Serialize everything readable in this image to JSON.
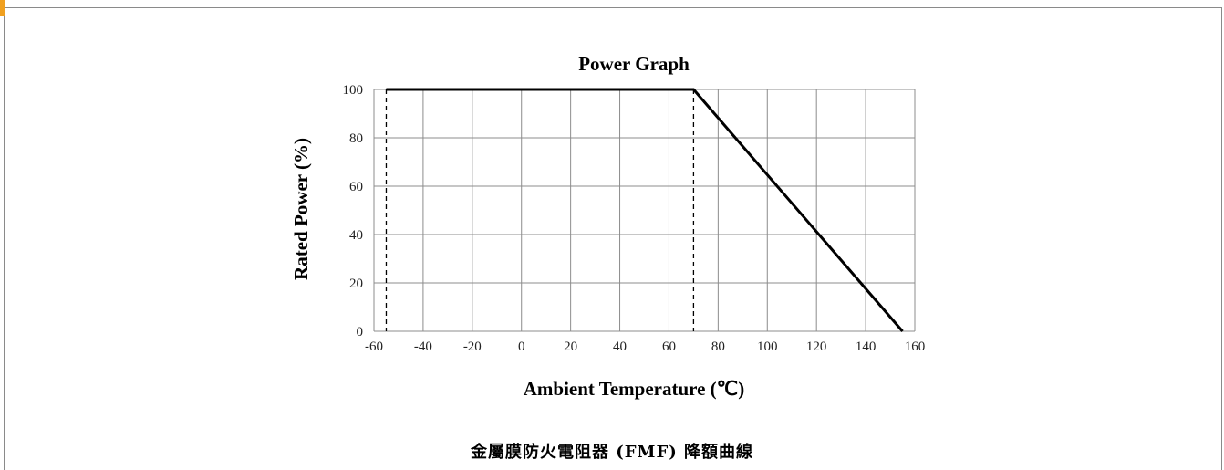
{
  "caption": "金屬膜防火電阻器 (FMF) 降額曲線",
  "chart_data": {
    "type": "line",
    "title": "Power Graph",
    "xlabel": "Ambient Temperature (℃)",
    "ylabel": "Rated Power (%)",
    "xlim": [
      -60,
      160
    ],
    "ylim": [
      0,
      100
    ],
    "x_ticks": [
      -60,
      -40,
      -20,
      0,
      20,
      40,
      60,
      80,
      100,
      120,
      140,
      160
    ],
    "y_ticks": [
      0,
      20,
      40,
      60,
      80,
      100
    ],
    "grid": true,
    "series": [
      {
        "x": [
          -55,
          70,
          155
        ],
        "y": [
          100,
          100,
          0
        ]
      }
    ],
    "reference_lines_x": [
      -55,
      70
    ],
    "line_color": "#000000",
    "grid_color": "#8c8c8c"
  }
}
